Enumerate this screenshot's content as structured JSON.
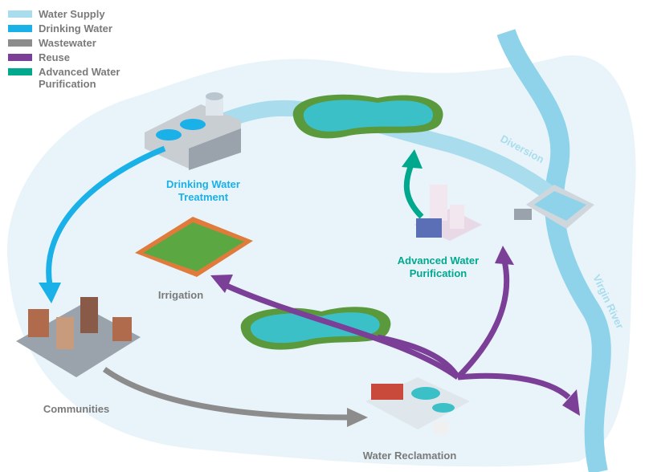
{
  "legend": [
    {
      "label": "Water Supply",
      "color": "#a9dced"
    },
    {
      "label": "Drinking Water",
      "color": "#1ab0e8"
    },
    {
      "label": "Wastewater",
      "color": "#8c8c8c"
    },
    {
      "label": "Reuse",
      "color": "#7b3f98"
    },
    {
      "label": "Advanced Water Purification",
      "color": "#00a88e"
    }
  ],
  "labels": {
    "drinking_water_treatment": "Drinking Water Treatment",
    "irrigation": "Irrigation",
    "advanced_water_purification": "Advanced Water Purification",
    "diversion": "Diversion",
    "virgin_river": "Virgin River",
    "communities": "Communities",
    "water_reclamation": "Water Reclamation"
  }
}
